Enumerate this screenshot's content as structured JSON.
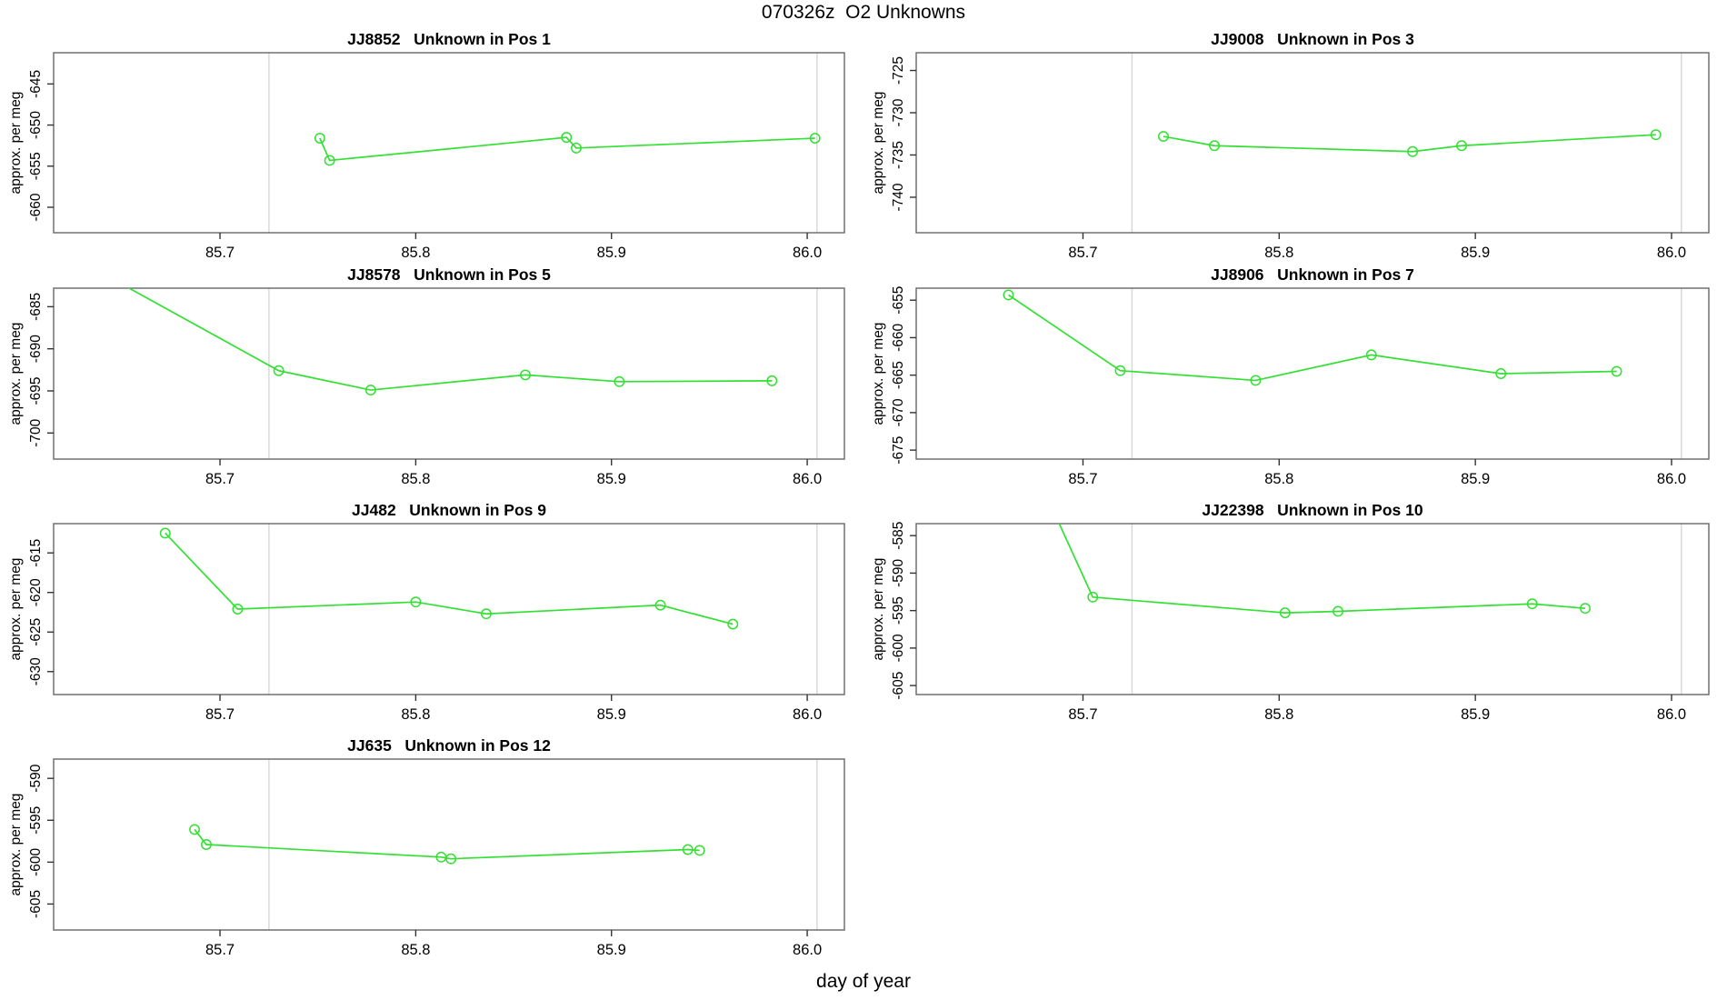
{
  "main_title": "070326z  O2 Unknowns",
  "xlabel": "day of year",
  "ylabel": "approx. per meg",
  "style": {
    "line_color": "#33e033",
    "grid_color": "#d9d9d9",
    "box_color": "#666666",
    "tick_color": "#333333",
    "text_color": "#000000"
  },
  "chart_data": [
    {
      "type": "line",
      "id": "JJ8852",
      "title": "JJ8852   Unknown in Pos 1",
      "row": 0,
      "col": 0,
      "ylabel": "approx. per meg",
      "xlim": [
        85.615,
        86.019
      ],
      "ylim": [
        -663.1,
        -641.2
      ],
      "xticks": {
        "values": [
          85.7,
          85.8,
          85.9,
          86.0
        ],
        "labels": [
          "85.7",
          "85.8",
          "85.9",
          "86.0"
        ]
      },
      "yticks": [
        -660,
        -655,
        -650,
        -645
      ],
      "vlines": [
        85.725,
        86.005
      ],
      "x": [
        85.751,
        85.756,
        85.877,
        85.882,
        86.004
      ],
      "y": [
        -651.6,
        -654.3,
        -651.5,
        -652.8,
        -651.6
      ]
    },
    {
      "type": "line",
      "id": "JJ9008",
      "title": "JJ9008   Unknown in Pos 3",
      "row": 0,
      "col": 1,
      "ylabel": "approx. per meg",
      "xlim": [
        85.615,
        86.019
      ],
      "ylim": [
        -744.2,
        -722.9
      ],
      "xticks": {
        "values": [
          85.7,
          85.8,
          85.9,
          86.0
        ],
        "labels": [
          "85.7",
          "85.8",
          "85.9",
          "86.0"
        ]
      },
      "yticks": [
        -740,
        -735,
        -730,
        -725
      ],
      "vlines": [
        85.725,
        86.005
      ],
      "x": [
        85.741,
        85.767,
        85.868,
        85.893,
        85.992
      ],
      "y": [
        -732.8,
        -733.9,
        -734.6,
        -733.9,
        -732.6
      ]
    },
    {
      "type": "line",
      "id": "JJ8578",
      "title": "JJ8578   Unknown in Pos 5",
      "row": 1,
      "col": 0,
      "ylabel": "approx. per meg",
      "xlim": [
        85.615,
        86.019
      ],
      "ylim": [
        -703.1,
        -682.8
      ],
      "xticks": {
        "values": [
          85.7,
          85.8,
          85.9,
          86.0
        ],
        "labels": [
          "85.7",
          "85.8",
          "85.9",
          "86.0"
        ]
      },
      "yticks": [
        -700,
        -695,
        -690,
        -685
      ],
      "vlines": [
        85.725,
        86.005
      ],
      "x": [
        85.645,
        85.73,
        85.777,
        85.856,
        85.904,
        85.982
      ],
      "y": [
        -681.7,
        -692.6,
        -694.9,
        -693.1,
        -693.9,
        -693.8
      ]
    },
    {
      "type": "line",
      "id": "JJ8906",
      "title": "JJ8906   Unknown in Pos 7",
      "row": 1,
      "col": 1,
      "ylabel": "approx. per meg",
      "xlim": [
        85.615,
        86.019
      ],
      "ylim": [
        -676.2,
        -653.4
      ],
      "xticks": {
        "values": [
          85.7,
          85.8,
          85.9,
          86.0
        ],
        "labels": [
          "85.7",
          "85.8",
          "85.9",
          "86.0"
        ]
      },
      "yticks": [
        -675,
        -670,
        -665,
        -660,
        -655
      ],
      "vlines": [
        85.725,
        86.005
      ],
      "x": [
        85.662,
        85.719,
        85.788,
        85.847,
        85.913,
        85.972
      ],
      "y": [
        -654.3,
        -664.4,
        -665.7,
        -662.3,
        -664.8,
        -664.5
      ]
    },
    {
      "type": "line",
      "id": "JJ482",
      "title": "JJ482   Unknown in Pos 9",
      "row": 2,
      "col": 0,
      "ylabel": "approx. per meg",
      "xlim": [
        85.615,
        86.019
      ],
      "ylim": [
        -632.9,
        -611.3
      ],
      "xticks": {
        "values": [
          85.7,
          85.8,
          85.9,
          86.0
        ],
        "labels": [
          "85.7",
          "85.8",
          "85.9",
          "86.0"
        ]
      },
      "yticks": [
        -630,
        -625,
        -620,
        -615
      ],
      "vlines": [
        85.725,
        86.005
      ],
      "x": [
        85.672,
        85.709,
        85.8,
        85.836,
        85.925,
        85.962
      ],
      "y": [
        -612.5,
        -622.1,
        -621.2,
        -622.7,
        -621.6,
        -624.0
      ]
    },
    {
      "type": "line",
      "id": "JJ22398",
      "title": "JJ22398   Unknown in Pos 10",
      "row": 2,
      "col": 1,
      "ylabel": "approx. per meg",
      "xlim": [
        85.615,
        86.019
      ],
      "ylim": [
        -606.2,
        -583.4
      ],
      "xticks": {
        "values": [
          85.7,
          85.8,
          85.9,
          86.0
        ],
        "labels": [
          "85.7",
          "85.8",
          "85.9",
          "86.0"
        ]
      },
      "yticks": [
        -605,
        -600,
        -595,
        -590,
        -585
      ],
      "vlines": [
        85.725,
        86.005
      ],
      "x": [
        85.683,
        85.705,
        85.803,
        85.83,
        85.929,
        85.956
      ],
      "y": [
        -580.6,
        -593.2,
        -595.3,
        -595.1,
        -594.1,
        -594.7
      ]
    },
    {
      "type": "line",
      "id": "JJ635",
      "title": "JJ635   Unknown in Pos 12",
      "row": 3,
      "col": 0,
      "ylabel": "approx. per meg",
      "xlim": [
        85.615,
        86.019
      ],
      "ylim": [
        -608.1,
        -587.7
      ],
      "xticks": {
        "values": [
          85.7,
          85.8,
          85.9,
          86.0
        ],
        "labels": [
          "85.7",
          "85.8",
          "85.9",
          "86.0"
        ]
      },
      "yticks": [
        -605,
        -600,
        -595,
        -590
      ],
      "vlines": [
        85.725,
        86.005
      ],
      "x": [
        85.687,
        85.693,
        85.813,
        85.818,
        85.939,
        85.945
      ],
      "y": [
        -596.1,
        -597.9,
        -599.4,
        -599.6,
        -598.5,
        -598.6
      ]
    }
  ]
}
